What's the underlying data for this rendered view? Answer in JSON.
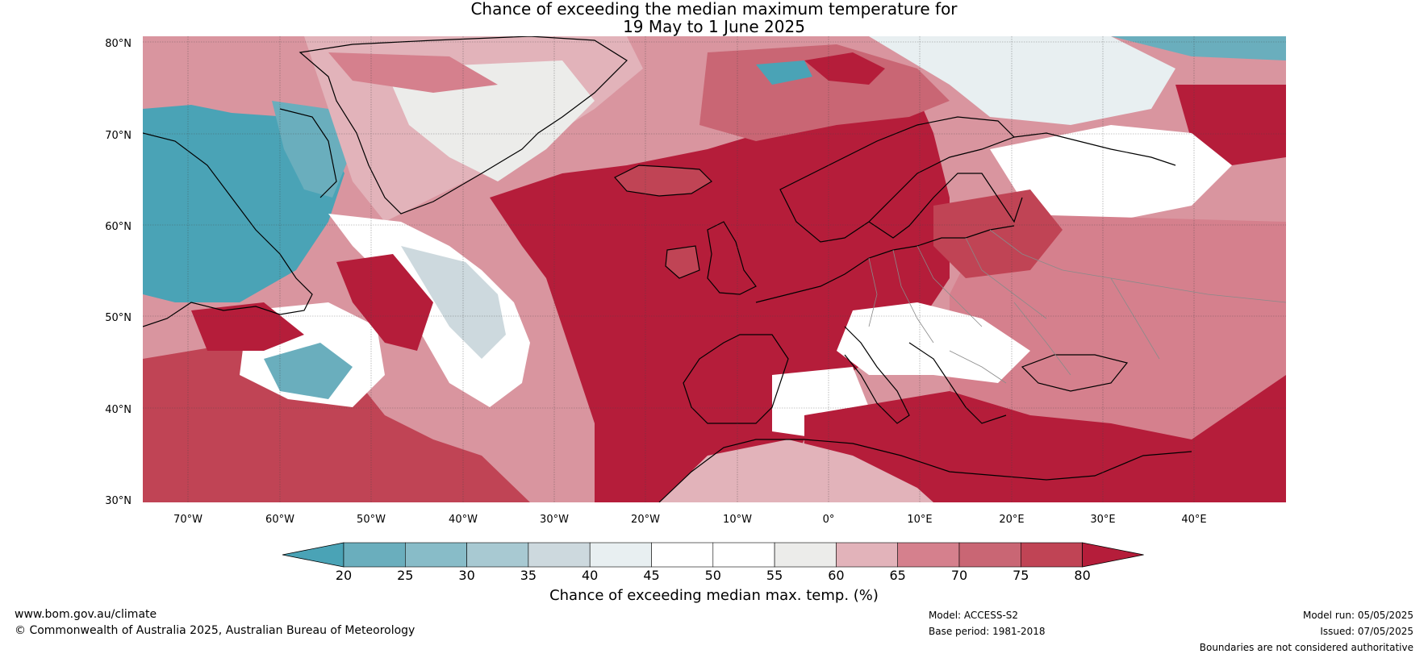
{
  "map": {
    "title_line1": "Chance of exceeding the median maximum temperature for",
    "title_line2": "19 May to 1 June 2025",
    "lat_labels": [
      "80°N",
      "70°N",
      "60°N",
      "50°N",
      "40°N",
      "30°N"
    ],
    "lon_labels": [
      "70°W",
      "60°W",
      "50°W",
      "40°W",
      "30°W",
      "20°W",
      "10°W",
      "0°",
      "10°E",
      "20°E",
      "30°E",
      "40°E"
    ],
    "lat_range": [
      30,
      80
    ],
    "lon_range": [
      -75,
      50
    ],
    "regions": [
      "Greenland",
      "Iceland",
      "North Atlantic",
      "Scandinavia",
      "Western Europe",
      "Mediterranean",
      "Eastern Canada"
    ]
  },
  "colorbar": {
    "label": "Chance of exceeding median max. temp. (%)",
    "ticks": [
      "20",
      "25",
      "30",
      "35",
      "40",
      "45",
      "50",
      "55",
      "60",
      "65",
      "70",
      "75",
      "80"
    ],
    "colors": [
      "#4aa3b6",
      "#6aaebd",
      "#88bcc8",
      "#a8c9d2",
      "#cdd9de",
      "#e8eff1",
      "#ffffff",
      "#ffffff",
      "#ececea",
      "#e2b3ba",
      "#d5808d",
      "#c96674",
      "#c04455",
      "#b51d3a"
    ]
  },
  "footer": {
    "url": "www.bom.gov.au/climate",
    "copyright": "© Commonwealth of Australia 2025, Australian Bureau of Meteorology",
    "model": "Model: ACCESS-S2",
    "base_period": "Base period: 1981-2018",
    "model_run": "Model run: 05/05/2025",
    "issued": "Issued: 07/05/2025",
    "disclaimer": "Boundaries are not considered authoritative"
  }
}
